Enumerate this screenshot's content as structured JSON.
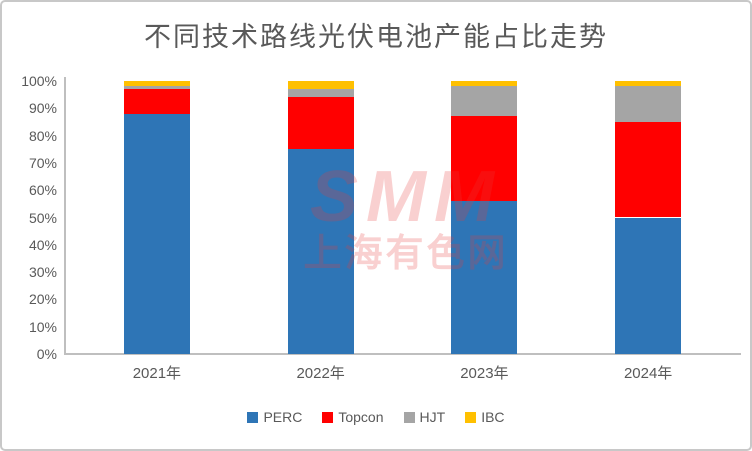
{
  "chart_data": {
    "type": "bar",
    "stacked": true,
    "title": "不同技术路线光伏电池产能占比走势",
    "categories": [
      "2021年",
      "2022年",
      "2023年",
      "2024年"
    ],
    "series": [
      {
        "name": "PERC",
        "color": "#2E75B6",
        "values": [
          88,
          75,
          56,
          50
        ]
      },
      {
        "name": "Topcon",
        "color": "#FF0000",
        "values": [
          9,
          19,
          31,
          35
        ]
      },
      {
        "name": "HJT",
        "color": "#A5A5A5",
        "values": [
          1,
          3,
          11,
          13
        ]
      },
      {
        "name": "IBC",
        "color": "#FFC000",
        "values": [
          2,
          3,
          2,
          2
        ]
      }
    ],
    "xlabel": "",
    "ylabel": "",
    "ylim": [
      0,
      100
    ],
    "ytick_labels": [
      "0%",
      "10%",
      "20%",
      "30%",
      "40%",
      "50%",
      "60%",
      "70%",
      "80%",
      "90%",
      "100%"
    ],
    "grid": false,
    "legend_position": "bottom"
  },
  "watermark": {
    "line1": "SMM",
    "line2": "上海有色网"
  },
  "colors": {
    "frame_border": "#C8C8C8",
    "axis_line": "#BFBFBF",
    "axis_label": "#595959",
    "title": "#595959",
    "legend_label": "#595959",
    "watermark": "rgba(230, 60, 60, 0.24)"
  }
}
